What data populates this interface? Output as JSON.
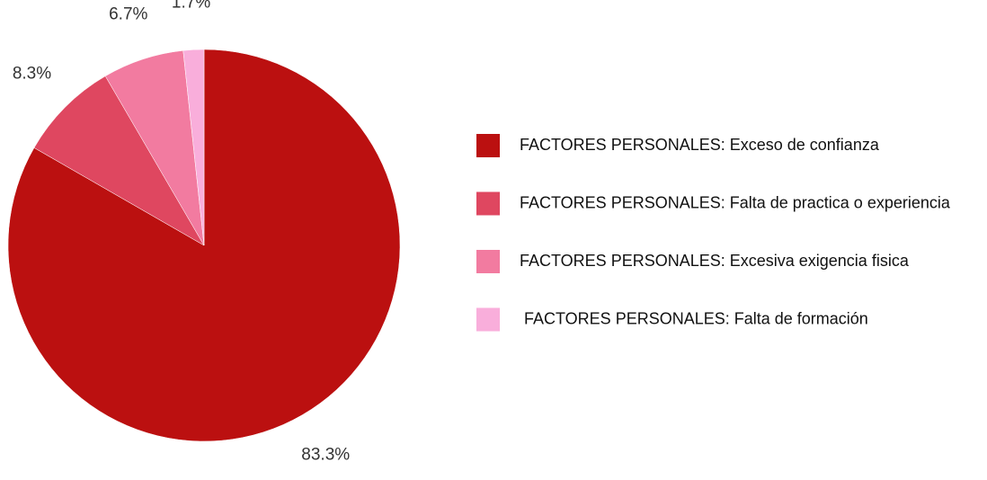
{
  "chart_data": {
    "type": "pie",
    "categories": [
      "FACTORES PERSONALES: Exceso de confianza",
      "FACTORES PERSONALES: Falta de practica o experiencia",
      "FACTORES PERSONALES: Excesiva exigencia fisica",
      " FACTORES PERSONALES: Falta de formación"
    ],
    "values": [
      83.3,
      8.3,
      6.7,
      1.7
    ],
    "value_labels": [
      "83.3%",
      "8.3%",
      "6.7%",
      "1.7%"
    ],
    "colors": [
      "#bb1010",
      "#df4760",
      "#f27ba0",
      "#f9aedb"
    ],
    "legend": "right"
  }
}
